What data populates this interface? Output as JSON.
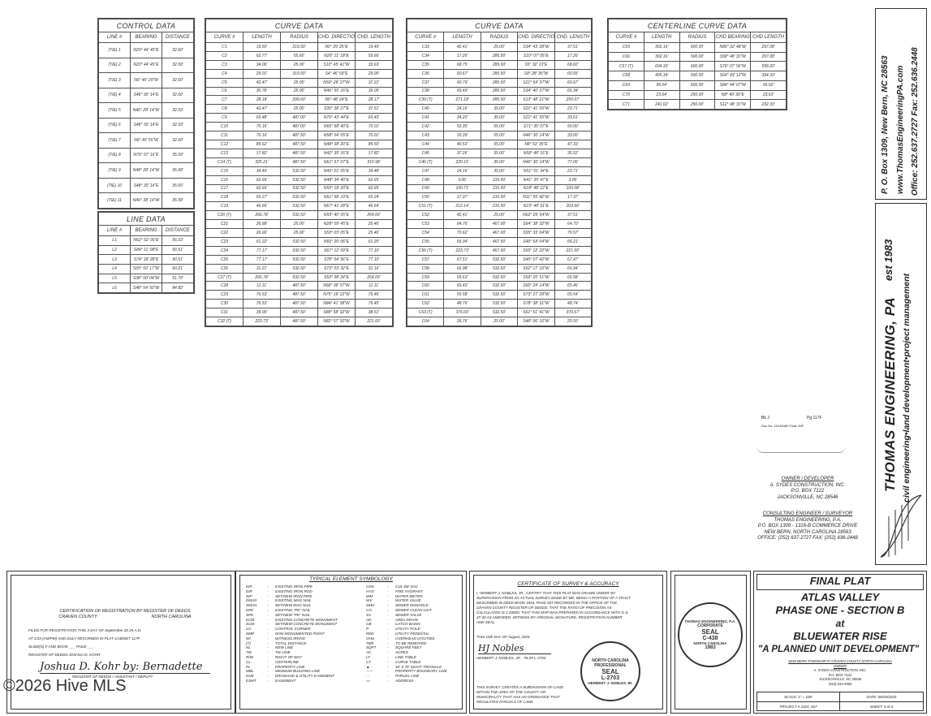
{
  "control_data": {
    "title": "CONTROL DATA",
    "columns": [
      "LINE #",
      "BEARING",
      "DISTANCE"
    ],
    "rows": [
      [
        "(TIE) 1",
        "N20° 44' 45\"E",
        "32.60'"
      ],
      [
        "(TIE) 2",
        "N20° 44' 45\"E",
        "32.50'"
      ],
      [
        "(TIE) 3",
        "N6° 40' 29\"W",
        "32.60'"
      ],
      [
        "(TIE) 4",
        "S48° 30' 14\"E",
        "32.60'"
      ],
      [
        "(TIE) 5",
        "N46° 28' 14\"W",
        "32.53'"
      ],
      [
        "(TIE) 6",
        "S48° 30' 14\"E",
        "32.33'"
      ],
      [
        "(TIE) 7",
        "N6° 40' 55\"W",
        "32.60'"
      ],
      [
        "(TIE) 8",
        "N76° 07' 16\"E",
        "35.59'"
      ],
      [
        "(TIE) 9",
        "N48° 28' 14\"W",
        "35.68'"
      ],
      [
        "(TIE) 10",
        "S48° 30' 14\"E",
        "35.65'"
      ],
      [
        "(TIE) 11",
        "N46° 38' 14\"W",
        "35.58'"
      ]
    ]
  },
  "line_data": {
    "title": "LINE DATA",
    "columns": [
      "LINE #",
      "BEARING",
      "DISTANCE"
    ],
    "rows": [
      [
        "L1",
        "N62° 52' 09\"E",
        "56.03'"
      ],
      [
        "L2",
        "S84° 11' 08\"E",
        "50.51'"
      ],
      [
        "L3",
        "S74° 18' 28\"E",
        "90.51'"
      ],
      [
        "L4",
        "S65° 50' 17\"W",
        "60.21'"
      ],
      [
        "L5",
        "S38° 50' 04\"W",
        "51.70'"
      ],
      [
        "L6",
        "S48° 54' 50\"W",
        "84.82'"
      ]
    ]
  },
  "curve_data_1": {
    "title": "CURVE DATA",
    "columns": [
      "CURVE #",
      "LENGTH",
      "RADIUS",
      "CHD. DIRECTION",
      "CHD. LENGTH"
    ],
    "rows": [
      [
        "C1",
        "19.50'",
        "219.50'",
        "N0° 29' 25\"E",
        "19.49'"
      ],
      [
        "C2",
        "62.77'",
        "55.60'",
        "N20° 11' 18\"E",
        "59.66'"
      ],
      [
        "C3",
        "34.06'",
        "25.00'",
        "S10° 45' 41\"W",
        "33.63'"
      ],
      [
        "C4",
        "29.01'",
        "319.50'",
        "S4° 46' 59\"E",
        "29.00'"
      ],
      [
        "C5",
        "42.47'",
        "25.00'",
        "N50° 28' 27\"W",
        "37.21'"
      ],
      [
        "C6",
        "30.78'",
        "25.00'",
        "N46° 55' 16\"E",
        "35.05'"
      ],
      [
        "C7",
        "28.18'",
        "299.60'",
        "N5° 48' 24\"E",
        "28.17'"
      ],
      [
        "C8",
        "42.47'",
        "25.00'",
        "S35° 38' 27\"E",
        "37.51'"
      ],
      [
        "C9",
        "65.48'",
        "487.00'",
        "N76° 43' 44\"E",
        "65.43'"
      ],
      [
        "C10",
        "70.16'",
        "487.00'",
        "N66° 58' 40\"E",
        "70.01'"
      ],
      [
        "C11",
        "70.16'",
        "487.50'",
        "N58° 04' 05\"E",
        "70.01'"
      ],
      [
        "C12",
        "85.62'",
        "487.50'",
        "N48° 38' 20\"E",
        "85.50'"
      ],
      [
        "C13",
        "17.82'",
        "487.50'",
        "N42° 35' 16\"E",
        "17.82'"
      ],
      [
        "C14 (T)",
        "325.21'",
        "487.50'",
        "N61° 57' 07\"E",
        "310.98'"
      ],
      [
        "C15",
        "34.49'",
        "532.50'",
        "N45° 21' 05\"E",
        "34.48'"
      ],
      [
        "C16",
        "62.66'",
        "532.50'",
        "N48° 34' 40\"E",
        "62.65'"
      ],
      [
        "C17",
        "62.66'",
        "532.50'",
        "N55° 18' 20\"E",
        "62.65'"
      ],
      [
        "C18",
        "60.27'",
        "532.50'",
        "N61° 58' 19\"E",
        "60.24'"
      ],
      [
        "C19",
        "46.66'",
        "532.50'",
        "N67° 41' 28\"E",
        "46.64'"
      ],
      [
        "C20 (T)",
        "266.78'",
        "532.50'",
        "N55° 40' 05\"E",
        "264.00'"
      ],
      [
        "C21",
        "26.68'",
        "25.00'",
        "N28° 09' 45\"E",
        "25.46'"
      ],
      [
        "C22",
        "26.66'",
        "25.00'",
        "S53° 03' 05\"E",
        "25.46'"
      ],
      [
        "C23",
        "61.22'",
        "532.50'",
        "N66° 20' 06\"E",
        "61.20'"
      ],
      [
        "C24",
        "77.17'",
        "532.50'",
        "S67° 12' 09\"E",
        "77.10'"
      ],
      [
        "C25",
        "77.17'",
        "532.50'",
        "S78° 54' 56\"E",
        "77.10'"
      ],
      [
        "C26",
        "31.21'",
        "532.50'",
        "S73° 03' 32\"E",
        "31.16'"
      ],
      [
        "C27 (T)",
        "266.78'",
        "532.50'",
        "S53° 38' 24\"E",
        "264.00'"
      ],
      [
        "C28",
        "11.11'",
        "487.50'",
        "N68° 38' 57\"W",
        "11.11'"
      ],
      [
        "C29",
        "76.53'",
        "487.50'",
        "N75° 18' 22\"W",
        "76.46'"
      ],
      [
        "C30",
        "76.53'",
        "487.50'",
        "N84° 41' 58\"W",
        "76.45'"
      ],
      [
        "C31",
        "39.00'",
        "487.50'",
        "S88° 58' 32\"W",
        "38.51'"
      ],
      [
        "C32 (T)",
        "223.73'",
        "487.50'",
        "N82° 57' 50\"W",
        "221.60'"
      ]
    ]
  },
  "curve_data_2": {
    "title": "CURVE DATA",
    "columns": [
      "CURVE #",
      "LENGTH",
      "RADIUS",
      "CHD. DIRECTION",
      "CHD. LENGTH"
    ],
    "rows": [
      [
        "C33",
        "42.41'",
        "25.00'",
        "S34° 43' 28\"W",
        "37.51'"
      ],
      [
        "C34",
        "17.26'",
        "285.50'",
        "S10° 07' 05\"E",
        "17.26'"
      ],
      [
        "C35",
        "68.75'",
        "285.50'",
        "S5° 32' 13\"E",
        "68.60'"
      ],
      [
        "C36",
        "60.67'",
        "285.50'",
        "S8° 28' 35\"W",
        "60.55'"
      ],
      [
        "C37",
        "60.79'",
        "285.50'",
        "S21° 54' 37\"W",
        "60.67'"
      ],
      [
        "C38",
        "65.49'",
        "285.50'",
        "S34° 40' 37\"W",
        "65.34'"
      ],
      [
        "C39 (T)",
        "271.18'",
        "285.50'",
        "S13° 48' 21\"W",
        "250.07'"
      ],
      [
        "C40",
        "24.16'",
        "35.00'",
        "S21° 41' 05\"W",
        "23.71'"
      ],
      [
        "C41",
        "34.20'",
        "35.00'",
        "S21° 41' 55\"W",
        "33.61'"
      ],
      [
        "C42",
        "52.35'",
        "55.00'",
        "S71° 35' 07\"E",
        "50.00'"
      ],
      [
        "C43",
        "33.39'",
        "55.00'",
        "N46° 30' 14\"W",
        "33.00'"
      ],
      [
        "C44",
        "40.53'",
        "55.00'",
        "N8° 53' 35\"E",
        "47.33'"
      ],
      [
        "C45",
        "37.26'",
        "35.00'",
        "N58° 48' 16\"E",
        "35.52'"
      ],
      [
        "C46 (T)",
        "220.16'",
        "35.00'",
        "N46° 30' 14\"W",
        "77.06'"
      ],
      [
        "C47",
        "24.16'",
        "35.00'",
        "N51° 01' 34\"E",
        "23.71'"
      ],
      [
        "C48",
        "3.06'",
        "216.50'",
        "N41° 35' 47\"E",
        "3.06'"
      ],
      [
        "C49",
        "100.71'",
        "216.50'",
        "N18° 48' 12\"E",
        "100.08'"
      ],
      [
        "C50",
        "17.37'",
        "216.50'",
        "N11° 55' 42\"W",
        "17.37'"
      ],
      [
        "C51 (T)",
        "212.14'",
        "216.50'",
        "N15° 48' 31\"E",
        "203.66'"
      ],
      [
        "C52",
        "42.41'",
        "25.00'",
        "N62° 29' 54\"W",
        "37.51'"
      ],
      [
        "C53",
        "64.76'",
        "467.00'",
        "S64° 38' 32\"W",
        "64.70'"
      ],
      [
        "C54",
        "70.62'",
        "467.00'",
        "S55° 33' 04\"W",
        "70.57'"
      ],
      [
        "C55",
        "66.34'",
        "467.50'",
        "S46° 54' 04\"W",
        "66.21'"
      ],
      [
        "C56 (T)",
        "223.73'",
        "467.50'",
        "S55° 12' 22\"W",
        "221.60'"
      ],
      [
        "C57",
        "67.51'",
        "532.50'",
        "S45° 07' 42\"W",
        "67.47'"
      ],
      [
        "C58",
        "66.98'",
        "532.50'",
        "S52° 17' 16\"W",
        "65.94'"
      ],
      [
        "C59",
        "65.63'",
        "532.50'",
        "S59° 25' 51\"W",
        "65.58'"
      ],
      [
        "C60",
        "65.43'",
        "532.50'",
        "S66° 24' 14\"W",
        "65.46'"
      ],
      [
        "C61",
        "65.58'",
        "532.50'",
        "S73° 27' 28\"W",
        "65.54'"
      ],
      [
        "C62",
        "48.76'",
        "532.50'",
        "S78° 38' 31\"W",
        "48.74'"
      ],
      [
        "C63 (T)",
        "376.60'",
        "532.50'",
        "S61° 51' 41\"W",
        "370.67'"
      ],
      [
        "C64",
        "26.76'",
        "25.00'",
        "S48° 06' 16\"W",
        "25.50'"
      ]
    ]
  },
  "centerline_data": {
    "title": "CENTERLINE CURVE DATA",
    "columns": [
      "CURVE #",
      "LENGTH",
      "RADIUS",
      "CHD BEARING",
      "CHD LENGTH"
    ],
    "rows": [
      [
        "C65",
        "302.16'",
        "600.00'",
        "N86° 22' 48\"W",
        "297.08'"
      ],
      [
        "C66",
        "302.16'",
        "500.00'",
        "S58° 48' 31\"W",
        "297.08'"
      ],
      [
        "C67 (T)",
        "604.33'",
        "600.00'",
        "S76° 07' 56\"W",
        "558.20'"
      ],
      [
        "C68",
        "405.34'",
        "500.00'",
        "S64° 43' 12\"W",
        "394.33'"
      ],
      [
        "C69",
        "95.04'",
        "600.00'",
        "S84° 44' 07\"W",
        "95.02'"
      ],
      [
        "C70",
        "23.64'",
        "250.00'",
        "N8° 40' 36\"E",
        "23.63'"
      ],
      [
        "C71",
        "241.62'",
        "250.00'",
        "S12° 48' 31\"W",
        "232.33'"
      ]
    ]
  },
  "firm_header": {
    "address": "P. O. Box 1309, New Bern, NC 28563",
    "website": "www.ThomasEngineeringPA.com",
    "phone": "Office: 252.637.2727  Fax: 252.636.2448"
  },
  "firm_logo": {
    "name": "THOMAS ENGINEERING, PA",
    "est": "est 1983",
    "tagline": "civil engineering•land development•project management"
  },
  "recording_stamp": {
    "book": "Bk J",
    "page": "Pg 117F",
    "doc": "Doc No. 10145480 Final: 60F"
  },
  "owner": {
    "heading": "OWNER / DEVELOPER",
    "lines": [
      "A. SYDES CONSTRUCTION, INC.",
      "P.O. BOX 7122",
      "JACKSONVILLE, NC 28546"
    ]
  },
  "engineer": {
    "heading": "CONSULTING ENGINEER / SURVEYOR",
    "lines": [
      "THOMAS ENGINEERING, P.A.",
      "P.O. BOX 1309 - 1316-B COMMERCE DRIVE",
      "NEW BERN, NORTH CAROLINA 28563",
      "OFFICE: (252) 637-2727  FAX: (252) 636-2448"
    ]
  },
  "registration": {
    "title": "CERTIFICATION OF REGISTRATION BY REGISTER OF DEEDS",
    "county": "CRAVEN COUNTY",
    "state": "NORTH CAROLINA",
    "line1": "FILED FOR REGISTRATION THIS  3  DAY OF  September  20 25 A.D.",
    "line2": "AT  3:03  (AM/PM) AND DULY RECORDED IN PLAT CABINET  117F",
    "line3": "SLIDE(S)  F      AND BOOK ___  PAGE ___",
    "line4": "REGISTER OF DEEDS  JOSHUA D. KOHR",
    "signature": "Joshua D. Kohr by: Bernadette",
    "sig_label": "REGISTER OF DEEDS / ASSISTANT / DEPUTY"
  },
  "symbology": {
    "title": "TYPICAL ELEMENT SYMBOLOGY",
    "left": [
      [
        "EIP",
        "EXISTING IRON PIPE"
      ],
      [
        "EIR",
        "EXISTING IRON ROD"
      ],
      [
        "SIP",
        "SET/NEW IRON PIPE"
      ],
      [
        "EMAG",
        "EXISTING MAG NAIL"
      ],
      [
        "SMAG",
        "SET/NEW MAG NAIL"
      ],
      [
        "EPK",
        "EXISTING \"PK\" NAIL"
      ],
      [
        "SPK",
        "SET/NEW \"PK\" NAIL"
      ],
      [
        "ECM",
        "EXISTING CONCRETE MONUMENT"
      ],
      [
        "SCM",
        "SET/NEW CONCRETE MONUMENT"
      ],
      [
        "CC",
        "CONTROL CORNER"
      ],
      [
        "NMP",
        "NON-MONUMENTED POINT"
      ],
      [
        "WI",
        "WITNESS IRONS"
      ],
      [
        "(T)",
        "TOTAL DISTANCE"
      ],
      [
        "NL",
        "NEW LINE"
      ],
      [
        "TIE",
        "TIE LINE"
      ],
      [
        "R/W",
        "RIGHT OF WAY"
      ],
      [
        "CL",
        "CENTERLINE"
      ],
      [
        "PL",
        "PROPERTY LINE"
      ],
      [
        "MBL",
        "MINIMUM BUILDING LINE"
      ],
      [
        "DUE",
        "DRAINAGE & UTILITY EASEMENT"
      ],
      [
        "ESMT",
        "EASEMENT"
      ]
    ],
    "right": [
      [
        "CDS",
        "CUL-DE-SAC"
      ],
      [
        "HYD",
        "FIRE HYDRANT"
      ],
      [
        "WM",
        "WATER METER"
      ],
      [
        "WV",
        "WATER VALVE"
      ],
      [
        "SMH",
        "SEWER MANHOLE"
      ],
      [
        "CO",
        "SEWER CLEAN-OUT"
      ],
      [
        "SV",
        "SEWER VALVE"
      ],
      [
        "AD",
        "AREA DRAIN"
      ],
      [
        "CB",
        "CATCH BASIN"
      ],
      [
        "P",
        "UTILITY POLE"
      ],
      [
        "PED",
        "UTILITY PEDESTAL"
      ],
      [
        "OHU",
        "OVERHEAD UTILITIES"
      ],
      [
        "TBR",
        "TO BE REMOVED"
      ],
      [
        "SQFT",
        "SQUARE FEET"
      ],
      [
        "AC",
        "ACRES"
      ],
      [
        "LT",
        "LINE TABLE"
      ],
      [
        "CT",
        "CURVE TABLE"
      ],
      [
        "▲",
        "10' X 70' SIGHT TRIANGLE"
      ],
      [
        "——",
        "PROPERTY BOUNDARY LINE"
      ],
      [
        "- -",
        "PARCEL LINE"
      ],
      [
        "▭",
        "ADDRESS"
      ]
    ]
  },
  "survey_cert": {
    "title": "CERTIFICATE OF SURVEY & ACCURACY",
    "body": "I, HERBERT J. NOBLES, JR., CERTIFY THAT THIS PLAT WAS DRAWN UNDER MY SUPERVISION FROM AN ACTUAL SURVEY MADE BY ME, BEING A PORTION OF A TRACT DESCRIBED IN DEED BOOK 3454, PAGE 837 RECORDED IN THE OFFICE OF THE CRAVEN COUNTY REGISTER OF DEEDS; THAT THE RATIO OF PRECISION AS CALCULATED IS 1:10000; THAT THIS MAP WAS PREPARED IN ACCORDANCE WITH G.S. 47-30 AS AMENDED. WITNESS MY ORIGINAL SIGNATURE, REGISTRATION NUMBER AND SEAL.",
    "date_line": "THIS 15th DAY OF August, 2025.",
    "signer": "HERBERT J. NOBLES, JR. - PLS# L-2703",
    "footer": "THIS SURVEY CREATES A SUBDIVISION OF LAND WITHIN THE AREA OF THE COUNTY OR MUNICIPALITY THAT HAS AN ORDINANCE THAT REGULATES PARCELS OF LAND."
  },
  "surveyor_seal": {
    "top": "NORTH CAROLINA",
    "mid": "PROFESSIONAL",
    "seal": "SEAL",
    "number": "L-2703",
    "bottom": "HERBERT J. NOBLES JR."
  },
  "corporate_seal": {
    "top": "THOMAS ENGINEERING, P.A.",
    "mid": "CORPORATE",
    "seal": "SEAL",
    "number": "C-438",
    "state": "NORTH CAROLINA",
    "year": "1983"
  },
  "title_block": {
    "type": "FINAL PLAT",
    "l1": "ATLAS VALLEY",
    "l2": "PHASE ONE - SECTION B",
    "l3": "at",
    "l4": "BLUEWATER RISE",
    "l5": "\"A PLANNED UNIT DEVELOPMENT\"",
    "location": "NEW BERN     TOWNSHIP #7  CRAVEN COUNTY     NORTH CAROLINA",
    "owner_label": "OWNER",
    "owner_lines": [
      "A. SYDES CONSTRUCTION, INC.",
      "P.O. BOX 7122",
      "JACKSONVILLE, NC 28546",
      "(910) 833-6566"
    ],
    "scale": "SCALE: 1\" = 100'",
    "date": "DATE: 08/04/2025",
    "project": "PROJECT # 2310_027",
    "sheet": "SHEET: 3 of 3"
  },
  "watermark": "©2026 Hive MLS"
}
